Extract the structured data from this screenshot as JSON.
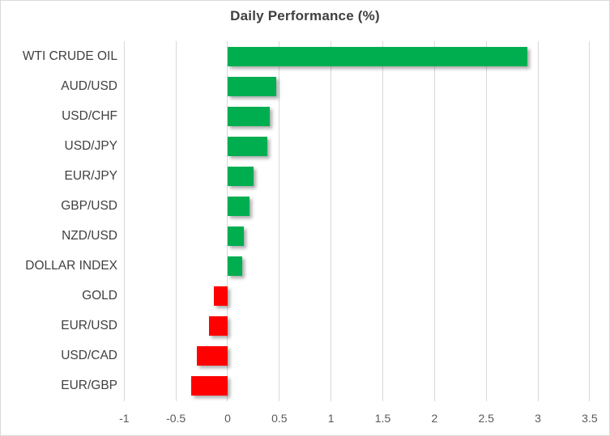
{
  "chart_data": {
    "type": "bar",
    "orientation": "horizontal",
    "title": "Daily Performance (%)",
    "categories": [
      "WTI CRUDE OIL",
      "AUD/USD",
      "USD/CHF",
      "USD/JPY",
      "EUR/JPY",
      "GBP/USD",
      "NZD/USD",
      "DOLLAR INDEX",
      "GOLD",
      "EUR/USD",
      "USD/CAD",
      "EUR/GBP"
    ],
    "values": [
      2.9,
      0.47,
      0.41,
      0.38,
      0.25,
      0.21,
      0.16,
      0.14,
      -0.13,
      -0.18,
      -0.3,
      -0.35
    ],
    "xlabel": "",
    "ylabel": "",
    "xlim": [
      -1,
      3.5
    ],
    "xticks": [
      -1,
      -0.5,
      0,
      0.5,
      1,
      1.5,
      2,
      2.5,
      3,
      3.5
    ],
    "xtick_labels": [
      "-1",
      "-0.5",
      "0",
      "0.5",
      "1",
      "1.5",
      "2",
      "2.5",
      "3",
      "3.5"
    ],
    "grid": true,
    "legend": false,
    "colors": {
      "positive_bar": "#00AE50",
      "negative_bar": "#FF0000",
      "gridline": "#D9D9D9",
      "tick_label": "#595959",
      "category_label": "#404040",
      "title": "#3F3F3F",
      "frame_border": "#D9D9D9",
      "background": "#FFFFFF"
    }
  }
}
